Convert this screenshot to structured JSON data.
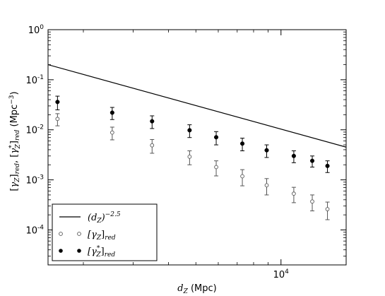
{
  "chart_data": {
    "type": "scatter",
    "x_scale": "log",
    "y_scale": "log",
    "xlabel": "d_Z (Mpc)",
    "ylabel": "[γ_Z]_red, [γ*_Z]_red (Mpc^-3)",
    "xlim": [
      1500,
      17000
    ],
    "ylim": [
      2e-05,
      1
    ],
    "y_tick_labels": [
      {
        "base": "10",
        "exp": "0",
        "value": 1
      },
      {
        "base": "10",
        "exp": "-1",
        "value": 0.1
      },
      {
        "base": "10",
        "exp": "-2",
        "value": 0.01
      },
      {
        "base": "10",
        "exp": "-3",
        "value": 0.001
      },
      {
        "base": "10",
        "exp": "-4",
        "value": 0.0001
      }
    ],
    "x_tick_labels": [
      {
        "base": "10",
        "exp": "4",
        "value": 10000
      }
    ],
    "legend_placement": "bottom-left",
    "grid": false,
    "series": [
      {
        "name": "(d_Z)^-2.5",
        "legend_base": "(d",
        "legend_sub": "Z",
        "legend_close": ")",
        "legend_exp": "−2.5",
        "kind": "line",
        "x": [
          1500,
          17000
        ],
        "y": [
          0.2,
          0.0045
        ]
      },
      {
        "name": "[γ_Z]_red",
        "legend_base": "[γ",
        "legend_sub": "Z",
        "legend_close": "]",
        "legend_exp": "",
        "legend_tail": "red",
        "kind": "open",
        "x": [
          1620,
          2530,
          3500,
          4750,
          5900,
          7300,
          8900,
          11100,
          12900,
          14600
        ],
        "y": [
          0.0165,
          0.0088,
          0.0049,
          0.0029,
          0.0018,
          0.00118,
          0.00078,
          0.00053,
          0.00037,
          0.00026
        ],
        "err_low": [
          0.0045,
          0.0025,
          0.0015,
          0.0009,
          0.0006,
          0.00042,
          0.00028,
          0.00018,
          0.00013,
          0.0001
        ],
        "err_high": [
          0.0045,
          0.0025,
          0.0015,
          0.0009,
          0.0006,
          0.00042,
          0.00028,
          0.00018,
          0.00013,
          0.0001
        ]
      },
      {
        "name": "[γ*_Z]_red",
        "legend_base": "[γ",
        "legend_sub": "Z",
        "legend_close": "]",
        "legend_exp": "*",
        "legend_tail": "red",
        "kind": "filled",
        "x": [
          1620,
          2530,
          3500,
          4750,
          5900,
          7300,
          8900,
          11100,
          12900,
          14600
        ],
        "y": [
          0.036,
          0.022,
          0.0148,
          0.0098,
          0.0071,
          0.0053,
          0.0039,
          0.003,
          0.0024,
          0.0019
        ],
        "err_low": [
          0.011,
          0.006,
          0.0042,
          0.0028,
          0.0021,
          0.0015,
          0.0011,
          0.0008,
          0.0006,
          0.0005
        ],
        "err_high": [
          0.011,
          0.006,
          0.0042,
          0.0028,
          0.0021,
          0.0015,
          0.0011,
          0.0008,
          0.0006,
          0.0005
        ]
      }
    ]
  }
}
